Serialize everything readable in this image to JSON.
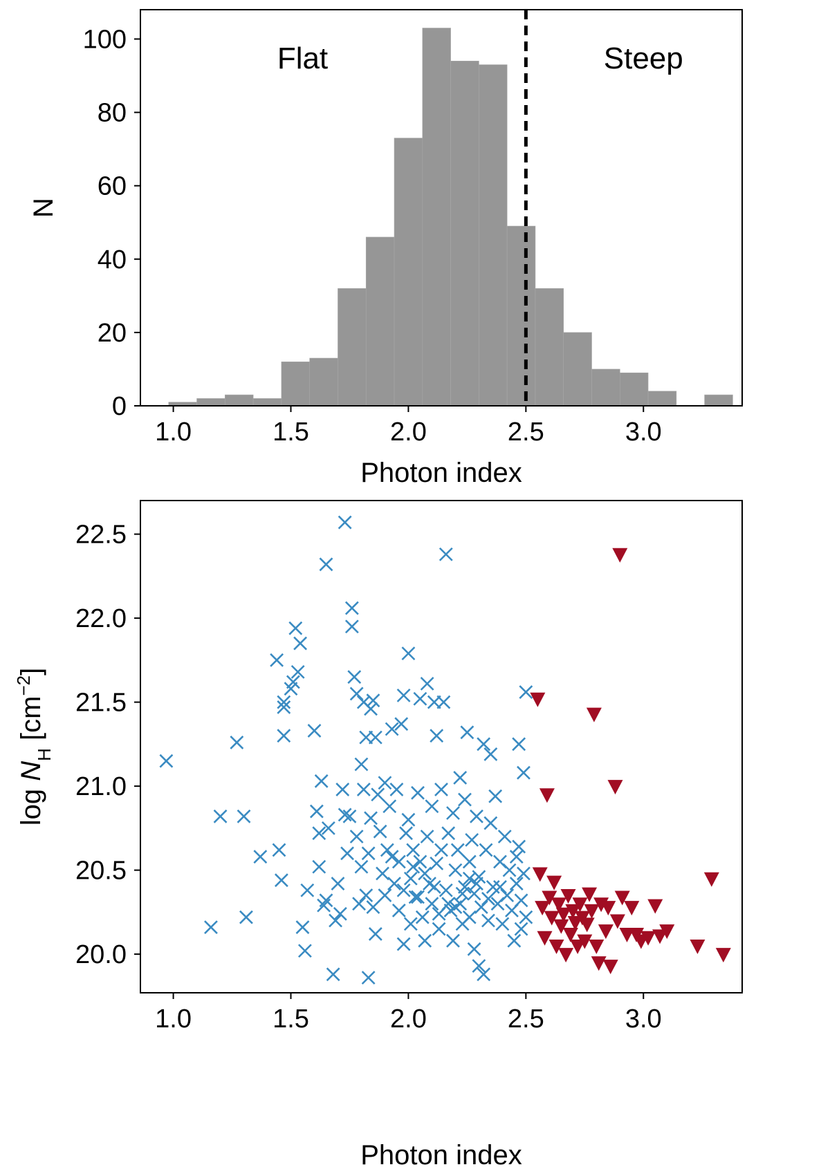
{
  "chart_data": [
    {
      "type": "bar",
      "subtype": "histogram",
      "xlabel": "Photon index",
      "ylabel": "N",
      "xlim": [
        0.86,
        3.42
      ],
      "ylim": [
        0,
        108
      ],
      "xticks": [
        1.0,
        1.5,
        2.0,
        2.5,
        3.0
      ],
      "xtick_labels": [
        "1.0",
        "1.5",
        "2.0",
        "2.5",
        "3.0"
      ],
      "yticks": [
        0,
        20,
        40,
        60,
        80,
        100
      ],
      "ytick_labels": [
        "0",
        "20",
        "40",
        "60",
        "80",
        "100"
      ],
      "bar_color": "#969696",
      "bins": [
        {
          "x0": 0.98,
          "x1": 1.1,
          "count": 1
        },
        {
          "x0": 1.1,
          "x1": 1.22,
          "count": 2
        },
        {
          "x0": 1.22,
          "x1": 1.34,
          "count": 3
        },
        {
          "x0": 1.34,
          "x1": 1.46,
          "count": 2
        },
        {
          "x0": 1.46,
          "x1": 1.58,
          "count": 12
        },
        {
          "x0": 1.58,
          "x1": 1.7,
          "count": 13
        },
        {
          "x0": 1.7,
          "x1": 1.82,
          "count": 32
        },
        {
          "x0": 1.82,
          "x1": 1.94,
          "count": 46
        },
        {
          "x0": 1.94,
          "x1": 2.06,
          "count": 73
        },
        {
          "x0": 2.06,
          "x1": 2.18,
          "count": 103
        },
        {
          "x0": 2.18,
          "x1": 2.3,
          "count": 94
        },
        {
          "x0": 2.3,
          "x1": 2.42,
          "count": 93
        },
        {
          "x0": 2.42,
          "x1": 2.54,
          "count": 49
        },
        {
          "x0": 2.54,
          "x1": 2.66,
          "count": 32
        },
        {
          "x0": 2.66,
          "x1": 2.78,
          "count": 20
        },
        {
          "x0": 2.78,
          "x1": 2.9,
          "count": 10
        },
        {
          "x0": 2.9,
          "x1": 3.02,
          "count": 9
        },
        {
          "x0": 3.02,
          "x1": 3.14,
          "count": 4
        },
        {
          "x0": 3.14,
          "x1": 3.26,
          "count": 0
        },
        {
          "x0": 3.26,
          "x1": 3.38,
          "count": 3
        }
      ],
      "vline": {
        "x": 2.5,
        "style": "dashed",
        "color": "#000000"
      },
      "annotations": [
        {
          "text": "Flat",
          "x": 1.55,
          "y": 95
        },
        {
          "text": "Steep",
          "x": 3.0,
          "y": 95
        }
      ]
    },
    {
      "type": "scatter",
      "xlabel": "Photon index",
      "ylabel_prefix": "log ",
      "ylabel_var": "N",
      "ylabel_sub": "H",
      "ylabel_unit": " [cm",
      "ylabel_sup": "−2",
      "ylabel_close": "]",
      "xlim": [
        0.86,
        3.42
      ],
      "ylim": [
        19.77,
        22.7
      ],
      "xticks": [
        1.0,
        1.5,
        2.0,
        2.5,
        3.0
      ],
      "xtick_labels": [
        "1.0",
        "1.5",
        "2.0",
        "2.5",
        "3.0"
      ],
      "yticks": [
        20.0,
        20.5,
        21.0,
        21.5,
        22.0,
        22.5
      ],
      "ytick_labels": [
        "20.0",
        "20.5",
        "21.0",
        "21.5",
        "22.0",
        "22.5"
      ],
      "series": [
        {
          "name": "Flat",
          "marker": "x",
          "color": "#3a8bc2",
          "points": [
            [
              0.97,
              21.15
            ],
            [
              1.16,
              20.16
            ],
            [
              1.2,
              20.82
            ],
            [
              1.27,
              21.26
            ],
            [
              1.3,
              20.82
            ],
            [
              1.31,
              20.22
            ],
            [
              1.37,
              20.58
            ],
            [
              1.44,
              21.75
            ],
            [
              1.45,
              20.62
            ],
            [
              1.46,
              20.44
            ],
            [
              1.47,
              21.5
            ],
            [
              1.47,
              21.47
            ],
            [
              1.47,
              21.3
            ],
            [
              1.5,
              21.58
            ],
            [
              1.51,
              21.62
            ],
            [
              1.52,
              21.94
            ],
            [
              1.53,
              21.68
            ],
            [
              1.54,
              21.85
            ],
            [
              1.55,
              20.16
            ],
            [
              1.56,
              20.02
            ],
            [
              1.57,
              20.38
            ],
            [
              1.6,
              21.33
            ],
            [
              1.61,
              20.85
            ],
            [
              1.62,
              20.72
            ],
            [
              1.62,
              20.52
            ],
            [
              1.63,
              21.03
            ],
            [
              1.64,
              20.29
            ],
            [
              1.65,
              22.32
            ],
            [
              1.65,
              20.32
            ],
            [
              1.66,
              20.75
            ],
            [
              1.68,
              19.88
            ],
            [
              1.69,
              20.2
            ],
            [
              1.7,
              20.42
            ],
            [
              1.71,
              20.24
            ],
            [
              1.72,
              20.98
            ],
            [
              1.73,
              22.57
            ],
            [
              1.73,
              20.83
            ],
            [
              1.74,
              20.6
            ],
            [
              1.75,
              20.82
            ],
            [
              1.76,
              21.95
            ],
            [
              1.76,
              22.06
            ],
            [
              1.77,
              21.65
            ],
            [
              1.78,
              21.55
            ],
            [
              1.78,
              20.7
            ],
            [
              1.79,
              20.3
            ],
            [
              1.8,
              21.13
            ],
            [
              1.8,
              20.52
            ],
            [
              1.81,
              21.5
            ],
            [
              1.81,
              20.98
            ],
            [
              1.82,
              21.29
            ],
            [
              1.82,
              20.35
            ],
            [
              1.83,
              19.86
            ],
            [
              1.83,
              20.6
            ],
            [
              1.84,
              21.46
            ],
            [
              1.84,
              20.81
            ],
            [
              1.85,
              21.51
            ],
            [
              1.85,
              20.28
            ],
            [
              1.86,
              20.12
            ],
            [
              1.86,
              21.29
            ],
            [
              1.87,
              20.95
            ],
            [
              1.88,
              20.73
            ],
            [
              1.89,
              20.48
            ],
            [
              1.9,
              20.35
            ],
            [
              1.9,
              21.02
            ],
            [
              1.91,
              20.62
            ],
            [
              1.92,
              20.88
            ],
            [
              1.93,
              20.58
            ],
            [
              1.93,
              21.34
            ],
            [
              1.94,
              20.42
            ],
            [
              1.95,
              20.98
            ],
            [
              1.96,
              20.55
            ],
            [
              1.96,
              20.26
            ],
            [
              1.97,
              21.37
            ],
            [
              1.98,
              21.54
            ],
            [
              1.98,
              20.06
            ],
            [
              1.99,
              20.72
            ],
            [
              2.0,
              21.79
            ],
            [
              2.0,
              20.8
            ],
            [
              2.01,
              20.45
            ],
            [
              2.01,
              20.18
            ],
            [
              2.02,
              20.62
            ],
            [
              2.03,
              20.34
            ],
            [
              2.04,
              20.96
            ],
            [
              2.05,
              21.52
            ],
            [
              2.05,
              20.55
            ],
            [
              2.06,
              20.22
            ],
            [
              2.07,
              20.08
            ],
            [
              2.08,
              21.61
            ],
            [
              2.08,
              20.7
            ],
            [
              2.09,
              20.42
            ],
            [
              2.1,
              20.88
            ],
            [
              2.1,
              20.3
            ],
            [
              2.11,
              21.5
            ],
            [
              2.12,
              20.54
            ],
            [
              2.12,
              21.3
            ],
            [
              2.13,
              20.15
            ],
            [
              2.14,
              20.62
            ],
            [
              2.14,
              20.98
            ],
            [
              2.15,
              21.5
            ],
            [
              2.16,
              20.38
            ],
            [
              2.16,
              22.38
            ],
            [
              2.17,
              20.72
            ],
            [
              2.18,
              20.26
            ],
            [
              2.19,
              20.84
            ],
            [
              2.19,
              20.08
            ],
            [
              2.2,
              20.5
            ],
            [
              2.21,
              20.62
            ],
            [
              2.22,
              21.05
            ],
            [
              2.22,
              20.3
            ],
            [
              2.23,
              20.18
            ],
            [
              2.24,
              20.4
            ],
            [
              2.24,
              20.92
            ],
            [
              2.25,
              21.32
            ],
            [
              2.26,
              20.55
            ],
            [
              2.26,
              20.22
            ],
            [
              2.27,
              20.68
            ],
            [
              2.28,
              20.36
            ],
            [
              2.28,
              20.03
            ],
            [
              2.29,
              20.82
            ],
            [
              2.3,
              19.93
            ],
            [
              2.3,
              20.46
            ],
            [
              2.31,
              20.28
            ],
            [
              2.32,
              21.25
            ],
            [
              2.32,
              19.88
            ],
            [
              2.33,
              20.62
            ],
            [
              2.34,
              20.2
            ],
            [
              2.35,
              20.78
            ],
            [
              2.35,
              21.19
            ],
            [
              2.36,
              20.4
            ],
            [
              2.37,
              20.94
            ],
            [
              2.38,
              20.3
            ],
            [
              2.39,
              20.55
            ],
            [
              2.4,
              20.18
            ],
            [
              2.41,
              20.7
            ],
            [
              2.42,
              20.35
            ],
            [
              2.43,
              20.5
            ],
            [
              2.44,
              20.26
            ],
            [
              2.45,
              20.08
            ],
            [
              2.46,
              20.42
            ],
            [
              2.47,
              21.25
            ],
            [
              2.47,
              20.64
            ],
            [
              2.48,
              20.32
            ],
            [
              2.48,
              20.15
            ],
            [
              2.49,
              20.48
            ],
            [
              2.49,
              21.08
            ],
            [
              2.5,
              21.56
            ],
            [
              2.5,
              20.22
            ],
            [
              2.46,
              20.58
            ],
            [
              2.04,
              20.34
            ],
            [
              2.11,
              20.4
            ],
            [
              2.17,
              20.3
            ],
            [
              2.23,
              20.36
            ],
            [
              2.29,
              20.42
            ],
            [
              2.07,
              20.48
            ],
            [
              2.13,
              20.24
            ],
            [
              2.2,
              20.28
            ],
            [
              2.26,
              20.45
            ],
            [
              1.98,
              20.38
            ],
            [
              2.02,
              20.52
            ],
            [
              2.34,
              20.33
            ],
            [
              2.39,
              20.4
            ]
          ]
        },
        {
          "name": "Steep",
          "marker": "triangle-down",
          "color": "#a10d23",
          "points": [
            [
              2.55,
              21.52
            ],
            [
              2.56,
              20.48
            ],
            [
              2.57,
              20.28
            ],
            [
              2.58,
              20.1
            ],
            [
              2.59,
              20.95
            ],
            [
              2.6,
              20.34
            ],
            [
              2.61,
              20.22
            ],
            [
              2.62,
              20.43
            ],
            [
              2.63,
              20.05
            ],
            [
              2.64,
              20.3
            ],
            [
              2.65,
              20.17
            ],
            [
              2.66,
              20.24
            ],
            [
              2.67,
              20.0
            ],
            [
              2.68,
              20.35
            ],
            [
              2.69,
              20.12
            ],
            [
              2.7,
              20.26
            ],
            [
              2.71,
              20.19
            ],
            [
              2.72,
              20.05
            ],
            [
              2.73,
              20.3
            ],
            [
              2.74,
              20.22
            ],
            [
              2.75,
              20.08
            ],
            [
              2.76,
              20.18
            ],
            [
              2.77,
              20.36
            ],
            [
              2.78,
              20.26
            ],
            [
              2.79,
              21.43
            ],
            [
              2.8,
              20.05
            ],
            [
              2.81,
              19.95
            ],
            [
              2.82,
              20.3
            ],
            [
              2.84,
              20.14
            ],
            [
              2.85,
              20.28
            ],
            [
              2.86,
              19.93
            ],
            [
              2.88,
              21.0
            ],
            [
              2.89,
              20.2
            ],
            [
              2.9,
              22.38
            ],
            [
              2.91,
              20.34
            ],
            [
              2.93,
              20.12
            ],
            [
              2.95,
              20.28
            ],
            [
              2.97,
              20.12
            ],
            [
              2.99,
              20.08
            ],
            [
              3.02,
              20.1
            ],
            [
              3.05,
              20.29
            ],
            [
              3.07,
              20.11
            ],
            [
              3.1,
              20.14
            ],
            [
              3.23,
              20.05
            ],
            [
              3.29,
              20.45
            ],
            [
              3.34,
              20.0
            ]
          ]
        }
      ]
    }
  ]
}
